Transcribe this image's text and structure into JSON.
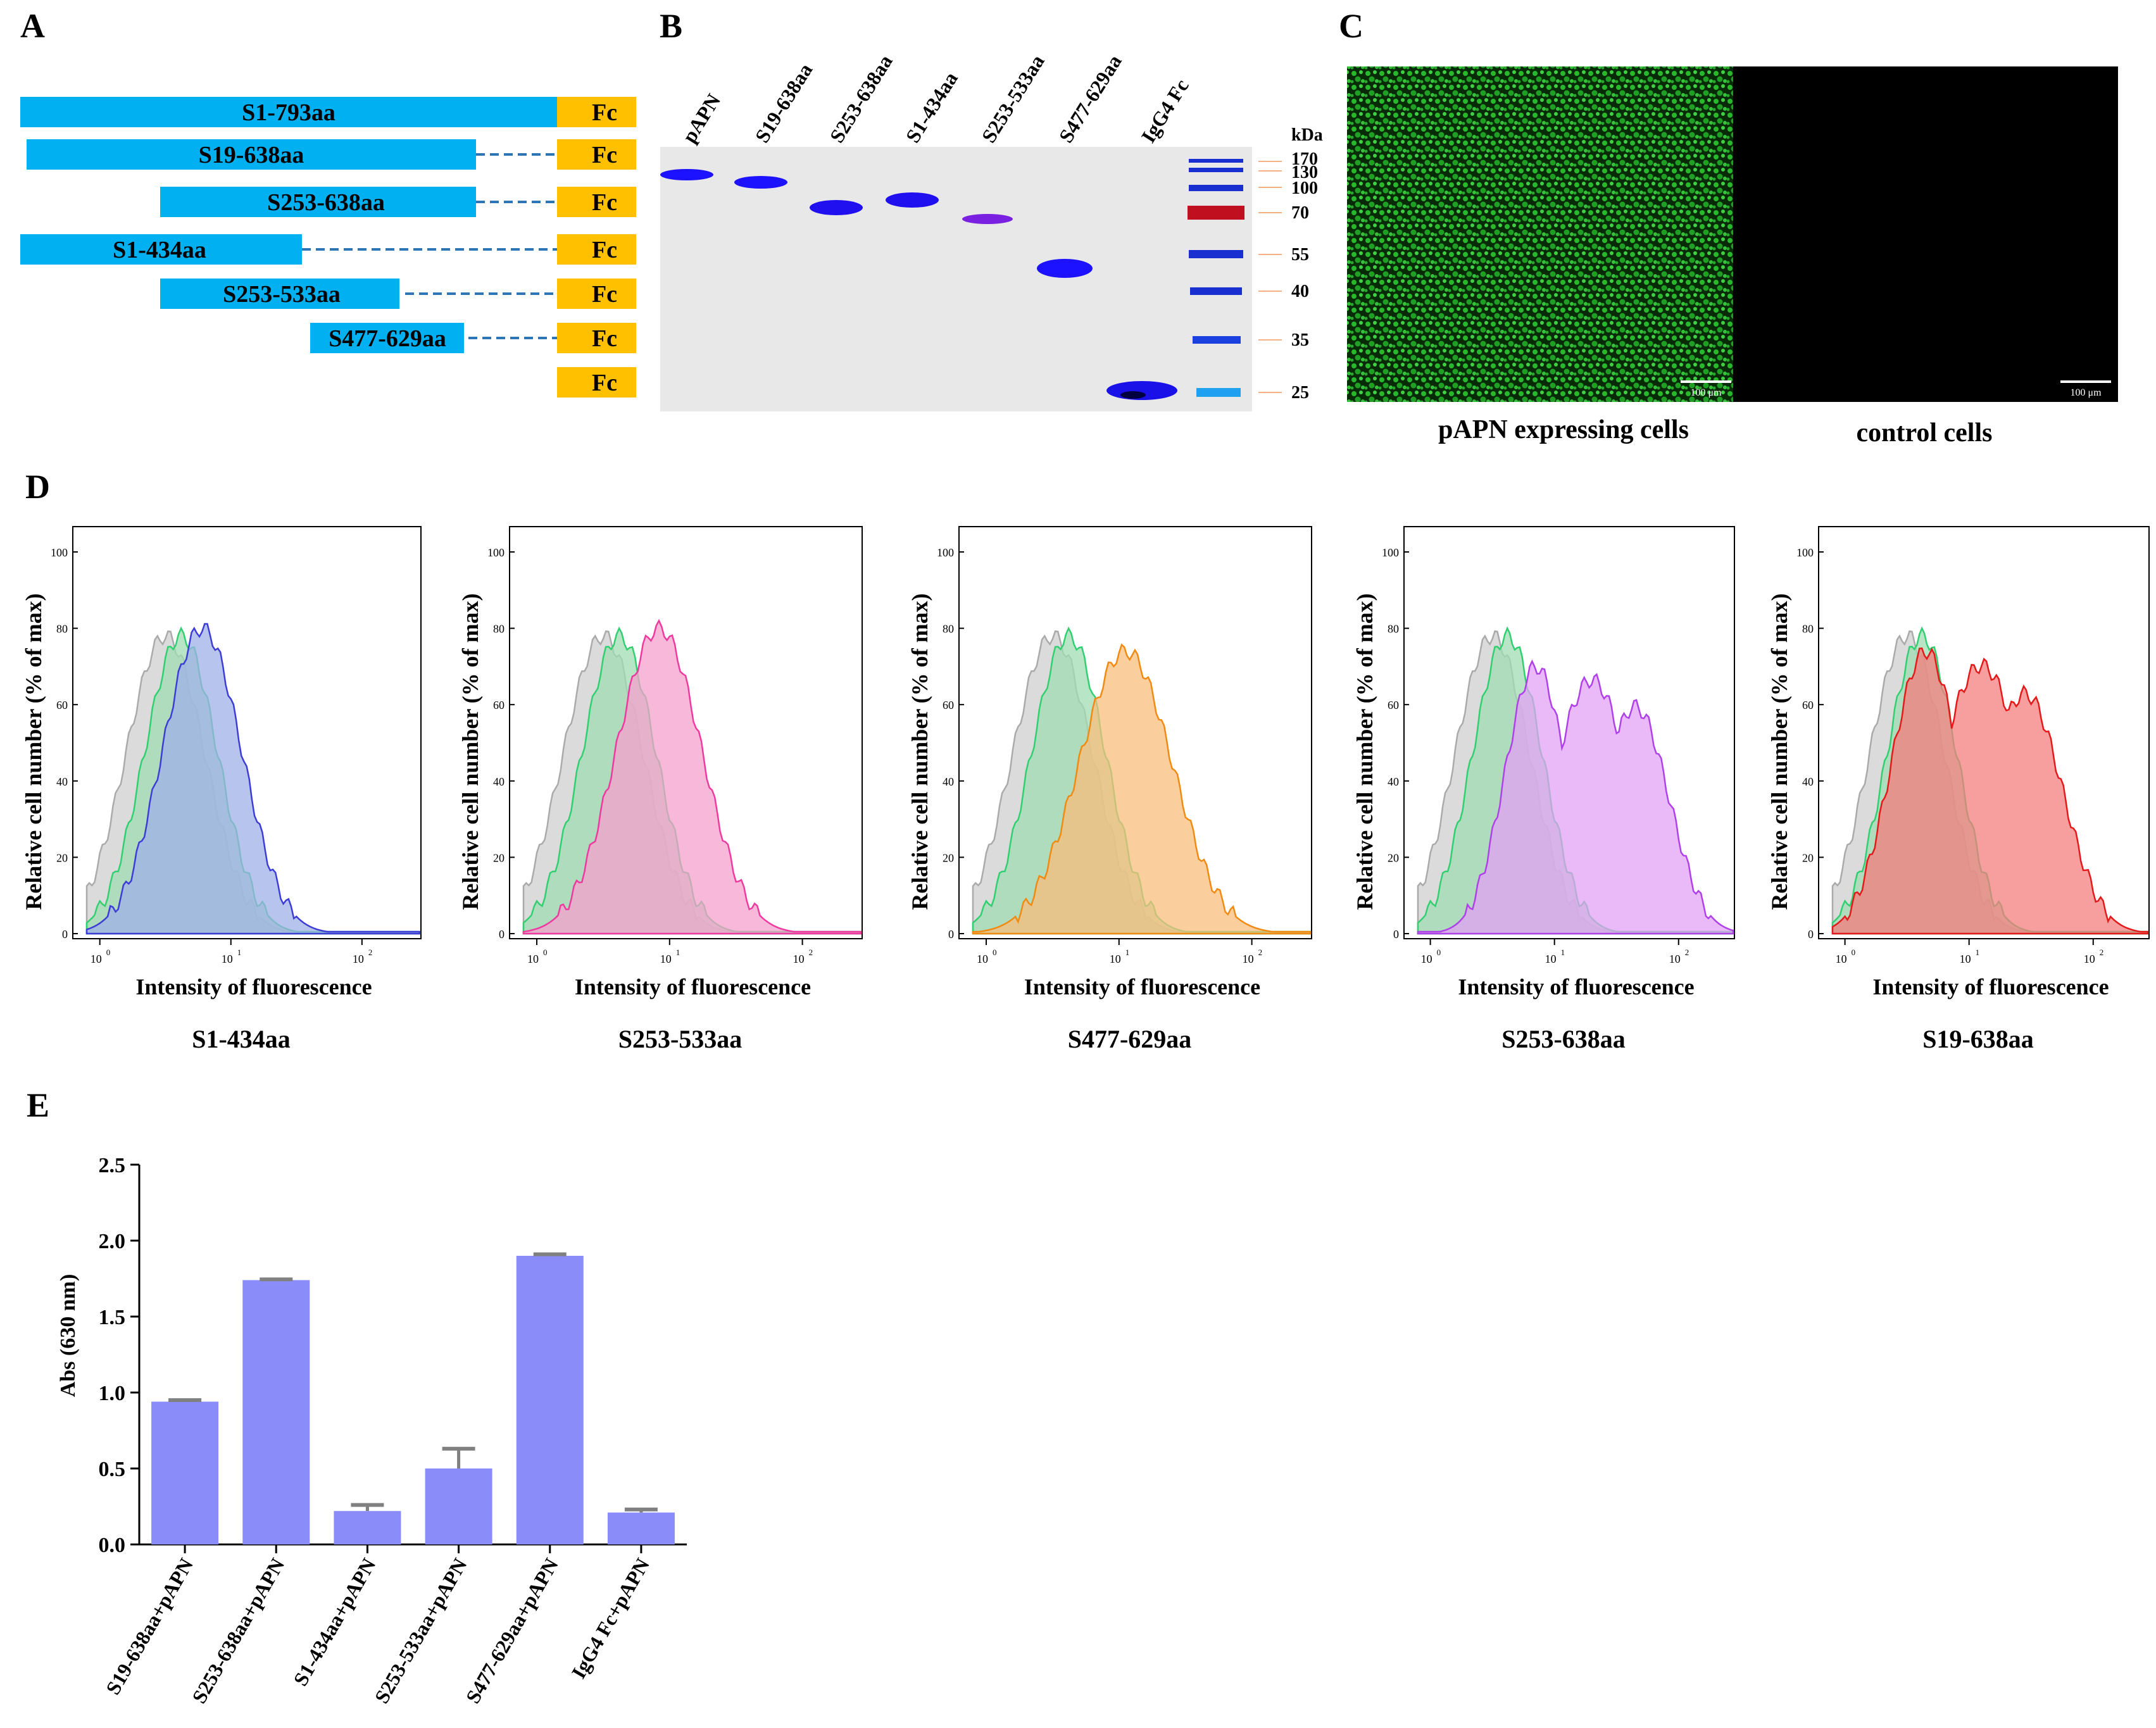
{
  "colors": {
    "construct_bar": "#00b0f0",
    "fc_box": "#ffc000",
    "dash": "#2e75b6",
    "gel_bg": "#e8e8e8",
    "marker_line": "#f4b183",
    "elisa_bar": "#8a8cfa",
    "hist_gray": "#cfcfcf",
    "hist_green": "#9fdcb3",
    "hist_colors": [
      "#3d3dd6",
      "#ee3aa0",
      "#f08a10",
      "#b040e8",
      "#e41a1a"
    ],
    "hist_fills": [
      "#9fb0e8",
      "#f6a0cc",
      "#f8bd7c",
      "#e2a2f6",
      "#f47e7e"
    ]
  },
  "panel_labels": {
    "a": "A",
    "b": "B",
    "c": "C",
    "d": "D",
    "e": "E"
  },
  "panelA": {
    "fc_label": "Fc",
    "constructs": [
      "S1-793aa",
      "S19-638aa",
      "S253-638aa",
      "S1-434aa",
      "S253-533aa",
      "S477-629aa"
    ]
  },
  "panelB": {
    "lanes": [
      "pAPN",
      "S19-638aa",
      "S253-638aa",
      "S1-434aa",
      "S253-533aa",
      "S477-629aa",
      "IgG4 Fc"
    ],
    "marker_unit": "kDa",
    "markers": [
      "170",
      "130",
      "100",
      "70",
      "55",
      "40",
      "35",
      "25"
    ]
  },
  "panelC": {
    "left_caption": "pAPN expressing cells",
    "right_caption": "control cells",
    "scale_bar": "100 μm"
  },
  "panelD": {
    "ylabel": "Relative cell number (% of max)",
    "xlabel": "Intensity of fluorescence",
    "yticks": [
      "0",
      "20",
      "40",
      "60",
      "80",
      "100"
    ],
    "xticks": [
      "10",
      "10",
      "10"
    ],
    "xtick_exps": [
      "0",
      "1",
      "2"
    ],
    "titles": [
      "S1-434aa",
      "S253-533aa",
      "S477-629aa",
      "S253-638aa",
      "S19-638aa"
    ]
  },
  "chart_data": {
    "type": "bar",
    "categories": [
      "S19-638aa+pAPN",
      "S253-638aa+pAPN",
      "S1-434aa+pAPN",
      "S253-533aa+pAPN",
      "S477-629aa+pAPN",
      "IgG4 Fc+pAPN"
    ],
    "values": [
      0.94,
      1.74,
      0.22,
      0.5,
      1.9,
      0.21
    ],
    "errors": [
      0.01,
      0.005,
      0.04,
      0.13,
      0.01,
      0.02
    ],
    "ylabel": "Abs (630 nm)",
    "ylim": [
      0,
      2.5
    ],
    "yticks": [
      "0.0",
      "0.5",
      "1.0",
      "1.5",
      "2.0",
      "2.5"
    ]
  }
}
